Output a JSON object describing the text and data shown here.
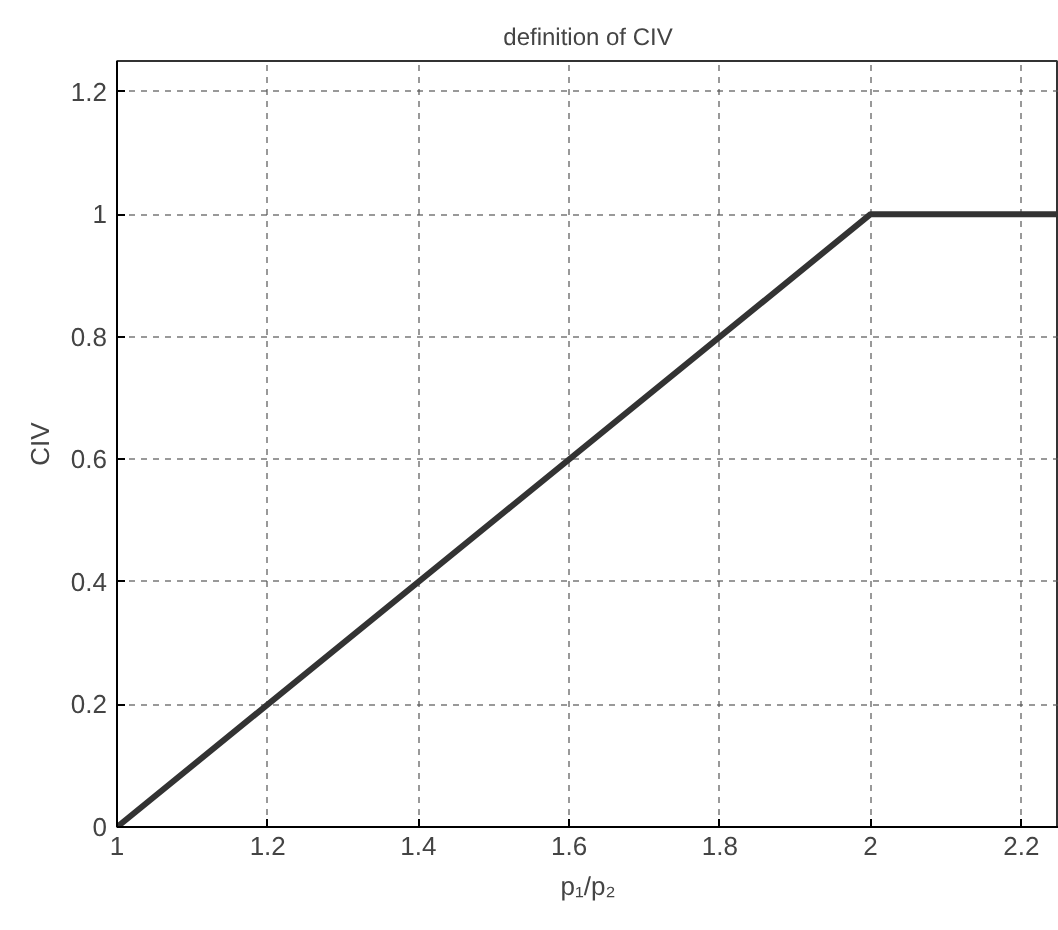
{
  "chart_data": {
    "type": "line",
    "title": "definition of CIV",
    "xlabel": "p₁/p₂",
    "ylabel": "CIV",
    "x": [
      1,
      2,
      2.25
    ],
    "series": [
      {
        "color": "#333333",
        "values": [
          0,
          1,
          1
        ]
      }
    ],
    "xlim": [
      1,
      2.25
    ],
    "ylim": [
      0,
      1.25
    ],
    "xticks": [
      1,
      1.2,
      1.4,
      1.6,
      1.8,
      2,
      2.2
    ],
    "yticks": [
      0,
      0.2,
      0.4,
      0.6,
      0.8,
      1,
      1.2
    ],
    "grid": true,
    "line_style": "solid"
  }
}
